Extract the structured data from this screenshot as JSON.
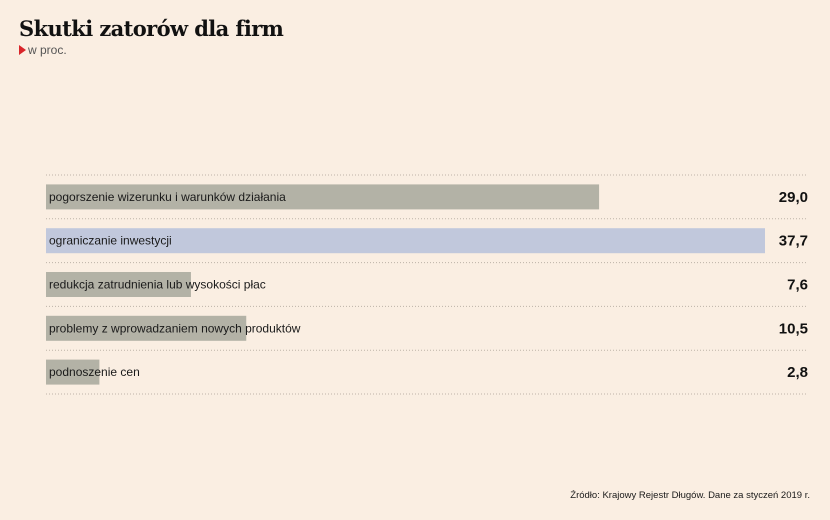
{
  "title": "Skutki zatorów dla firm",
  "subtitle": "w proc.",
  "source": "Źródło: Krajowy Rejestr Długów. Dane za styczeń 2019 r.",
  "colors": {
    "background": "#faeee2",
    "bar_default": "#b3b2a6",
    "bar_highlight": "#c1c8dc",
    "marker": "#d9252a"
  },
  "chart_data": {
    "type": "bar",
    "orientation": "horizontal",
    "categories": [
      "pogorszenie wizerunku i warunków działania",
      "ograniczanie inwestycji",
      "redukcja zatrudnienia lub wysokości płac",
      "problemy z wprowadzaniem nowych produktów",
      "podnoszenie cen"
    ],
    "values": [
      29.0,
      37.7,
      7.6,
      10.5,
      2.8
    ],
    "value_labels": [
      "29,0",
      "37,7",
      "7,6",
      "10,5",
      "2,8"
    ],
    "highlight_index": 1,
    "xlim": [
      0,
      37.7
    ],
    "grid": true
  }
}
